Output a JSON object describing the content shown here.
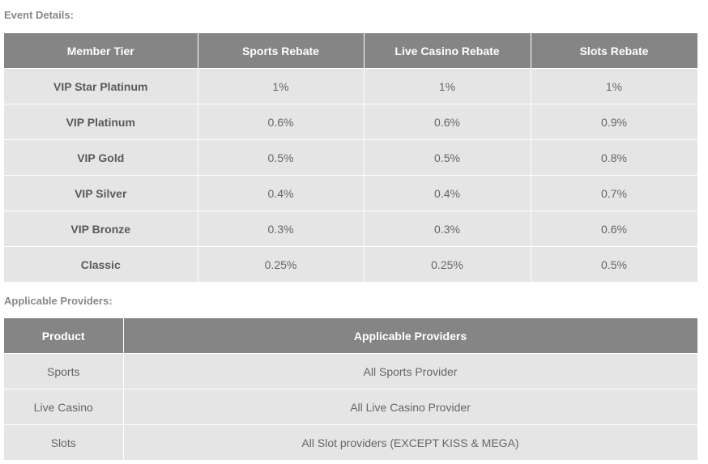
{
  "event_details": {
    "heading": "Event Details:",
    "headers": [
      "Member Tier",
      "Sports Rebate",
      "Live Casino Rebate",
      "Slots Rebate"
    ],
    "rows": [
      [
        "VIP Star Platinum",
        "1%",
        "1%",
        "1%"
      ],
      [
        "VIP Platinum",
        "0.6%",
        "0.6%",
        "0.9%"
      ],
      [
        "VIP Gold",
        "0.5%",
        "0.5%",
        "0.8%"
      ],
      [
        "VIP Silver",
        "0.4%",
        "0.4%",
        "0.7%"
      ],
      [
        "VIP Bronze",
        "0.3%",
        "0.3%",
        "0.6%"
      ],
      [
        "Classic",
        "0.25%",
        "0.25%",
        "0.5%"
      ]
    ]
  },
  "providers": {
    "heading": "Applicable Providers:",
    "headers": [
      "Product",
      "Applicable Providers"
    ],
    "rows": [
      [
        "Sports",
        "All Sports Provider"
      ],
      [
        "Live Casino",
        "All Live Casino Provider"
      ],
      [
        "Slots",
        "All Slot providers (EXCEPT KISS & MEGA)"
      ]
    ]
  },
  "colors": {
    "header_bg": "#858585",
    "row_bg": "#e5e5e5",
    "heading_text": "#878787"
  }
}
